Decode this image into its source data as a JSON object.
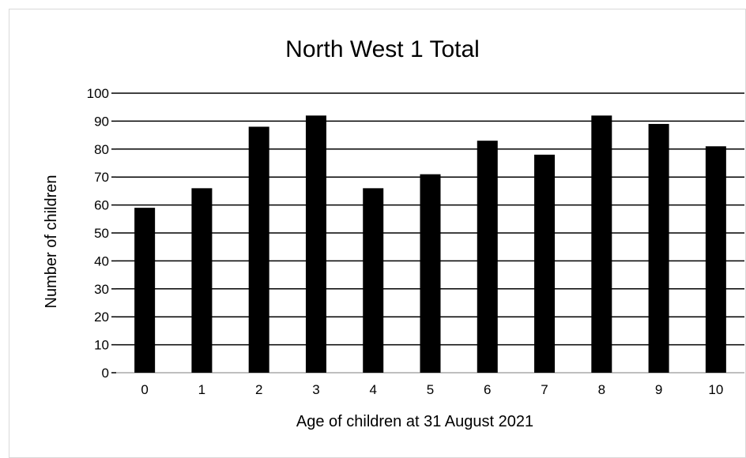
{
  "chart_data": {
    "type": "bar",
    "title": "North West 1 Total",
    "xlabel": "Age of children at 31 August 2021",
    "ylabel": "Number of children",
    "categories": [
      "0",
      "1",
      "2",
      "3",
      "4",
      "5",
      "6",
      "7",
      "8",
      "9",
      "10"
    ],
    "values": [
      59,
      66,
      88,
      92,
      66,
      71,
      83,
      78,
      92,
      89,
      81
    ],
    "ylim": [
      0,
      100
    ],
    "yticks": [
      0,
      10,
      20,
      30,
      40,
      50,
      60,
      70,
      80,
      90,
      100
    ],
    "grid": true,
    "legend": "none",
    "colors": {
      "bar": "#000000",
      "gridline": "#000000",
      "baseline": "#bfbfbf",
      "border": "#d9d9d9"
    }
  }
}
